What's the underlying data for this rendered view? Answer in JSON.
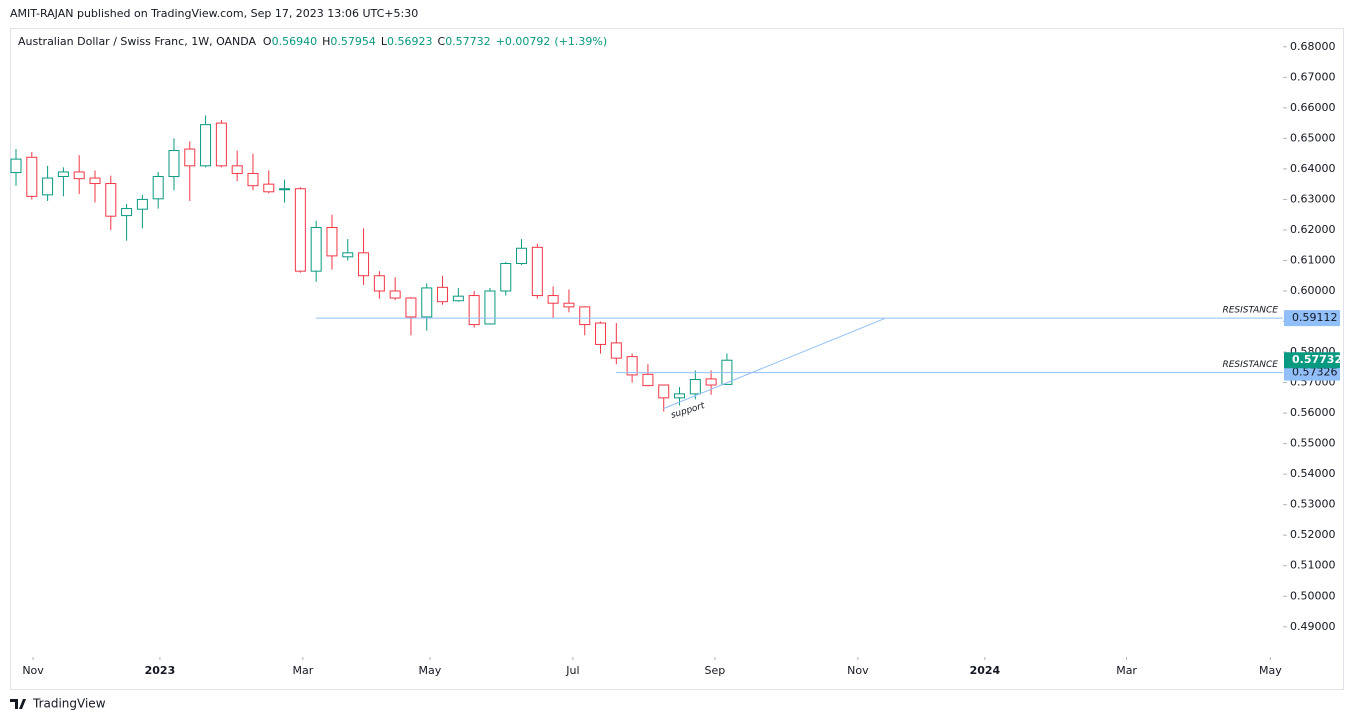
{
  "chart_data": {
    "type": "candlestick",
    "header": "AMIT-RAJAN published on TradingView.com, Sep 17, 2023 13:06 UTC+5:30",
    "title": "Australian Dollar / Swiss Franc, 1W, OANDA",
    "ohlc_legend": [
      {
        "label": "O",
        "value": "0.56940"
      },
      {
        "label": "H",
        "value": "0.57954"
      },
      {
        "label": "L",
        "value": "0.56923"
      },
      {
        "label": "C",
        "value": "0.57732"
      }
    ],
    "change": "+0.00792",
    "change_pct": "(+1.39%)",
    "footer": "TradingView",
    "up_color": "#089981",
    "down_color": "#f23645",
    "open": [
      0.6388,
      0.6438,
      0.6315,
      0.6375,
      0.639,
      0.637,
      0.6352,
      0.6247,
      0.6268,
      0.6302,
      0.6375,
      0.6465,
      0.641,
      0.655,
      0.641,
      0.6385,
      0.635,
      0.6333,
      0.6335,
      0.6065,
      0.6208,
      0.6112,
      0.6125,
      0.605,
      0.6,
      0.5977,
      0.5915,
      0.6012,
      0.5968,
      0.5985,
      0.5892,
      0.6,
      0.609,
      0.6143,
      0.5985,
      0.596,
      0.5948,
      0.5895,
      0.583,
      0.5785,
      0.5727,
      0.5692,
      0.565,
      0.5663,
      0.5712,
      0.5694
    ],
    "high": [
      0.6465,
      0.6455,
      0.641,
      0.6405,
      0.6445,
      0.6395,
      0.6378,
      0.6285,
      0.6315,
      0.639,
      0.65,
      0.649,
      0.6575,
      0.656,
      0.646,
      0.645,
      0.6395,
      0.6365,
      0.634,
      0.623,
      0.625,
      0.617,
      0.6205,
      0.6065,
      0.6045,
      0.598,
      0.6025,
      0.605,
      0.601,
      0.6,
      0.601,
      0.6095,
      0.617,
      0.6155,
      0.6015,
      0.6005,
      0.595,
      0.59,
      0.5895,
      0.5795,
      0.576,
      0.5693,
      0.5685,
      0.574,
      0.574,
      0.57954
    ],
    "low": [
      0.6345,
      0.63,
      0.6295,
      0.631,
      0.6318,
      0.629,
      0.62,
      0.6165,
      0.6205,
      0.627,
      0.633,
      0.6295,
      0.6405,
      0.6405,
      0.636,
      0.633,
      0.632,
      0.629,
      0.606,
      0.603,
      0.607,
      0.61,
      0.602,
      0.5975,
      0.597,
      0.5855,
      0.587,
      0.5955,
      0.5965,
      0.588,
      0.589,
      0.5985,
      0.6085,
      0.5975,
      0.591,
      0.593,
      0.5855,
      0.5795,
      0.576,
      0.57,
      0.5688,
      0.5605,
      0.5625,
      0.5645,
      0.566,
      0.56923
    ],
    "close": [
      0.6432,
      0.631,
      0.637,
      0.639,
      0.6368,
      0.6352,
      0.6245,
      0.627,
      0.63,
      0.6375,
      0.646,
      0.641,
      0.6545,
      0.641,
      0.6385,
      0.6345,
      0.6325,
      0.6335,
      0.6065,
      0.6208,
      0.6115,
      0.6125,
      0.605,
      0.6,
      0.5977,
      0.5915,
      0.601,
      0.5965,
      0.5983,
      0.589,
      0.6,
      0.609,
      0.614,
      0.5985,
      0.596,
      0.5948,
      0.589,
      0.5825,
      0.578,
      0.5725,
      0.569,
      0.565,
      0.5663,
      0.571,
      0.5692,
      0.57732
    ],
    "last_label": "0.57732",
    "price_lines": [
      {
        "label": "RESISTANCE",
        "value": 0.59112,
        "value_label": "0.59112",
        "start": 19,
        "color": "#90bff9"
      },
      {
        "label": "RESISTANCE",
        "value": 0.57326,
        "value_label": "0.57326",
        "start": 38,
        "color": "#90bff9"
      }
    ],
    "trendline": {
      "label": "support",
      "x": [
        41,
        55
      ],
      "y": [
        0.5615,
        0.591
      ],
      "color": "#90bff9"
    },
    "xlim": [
      -0.38,
      80.2
    ],
    "ylim": [
      0.4801,
      0.6855
    ],
    "yticks": [
      {
        "value": 0.68,
        "label": "0.68000"
      },
      {
        "value": 0.67,
        "label": "0.67000"
      },
      {
        "value": 0.66,
        "label": "0.66000"
      },
      {
        "value": 0.65,
        "label": "0.65000"
      },
      {
        "value": 0.64,
        "label": "0.64000"
      },
      {
        "value": 0.63,
        "label": "0.63000"
      },
      {
        "value": 0.62,
        "label": "0.62000"
      },
      {
        "value": 0.61,
        "label": "0.61000"
      },
      {
        "value": 0.6,
        "label": "0.60000"
      },
      {
        "value": 0.59,
        "label": "0.59000"
      },
      {
        "value": 0.58,
        "label": "0.58000"
      },
      {
        "value": 0.57,
        "label": "0.57000"
      },
      {
        "value": 0.56,
        "label": "0.56000"
      },
      {
        "value": 0.55,
        "label": "0.55000"
      },
      {
        "value": 0.54,
        "label": "0.54000"
      },
      {
        "value": 0.53,
        "label": "0.53000"
      },
      {
        "value": 0.52,
        "label": "0.52000"
      },
      {
        "value": 0.51,
        "label": "0.51000"
      },
      {
        "value": 0.5,
        "label": "0.50000"
      },
      {
        "value": 0.49,
        "label": "0.49000"
      }
    ],
    "xticks": [
      {
        "value": 1.08,
        "label": "Nov"
      },
      {
        "value": 9.11,
        "label": "2023"
      },
      {
        "value": 18.16,
        "label": "Mar"
      },
      {
        "value": 26.2,
        "label": "May"
      },
      {
        "value": 35.25,
        "label": "Jul"
      },
      {
        "value": 44.24,
        "label": "Sep"
      },
      {
        "value": 53.29,
        "label": "Nov"
      },
      {
        "value": 61.33,
        "label": "2024"
      },
      {
        "value": 70.3,
        "label": "Mar"
      },
      {
        "value": 79.4,
        "label": "May"
      }
    ]
  }
}
